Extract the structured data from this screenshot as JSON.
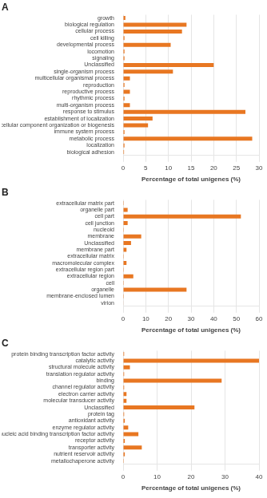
{
  "chart_data": [
    {
      "type": "bar",
      "orientation": "horizontal",
      "title": "A",
      "categories": [
        "growth",
        "biological regulation",
        "cellular process",
        "cell killing",
        "developmental process",
        "locomotion",
        "signaling",
        "Unclassified",
        "single-organism process",
        "multicellular organismal process",
        "reproduction",
        "reproductive process",
        "rhythmic process",
        "multi-organism process",
        "response to stimulus",
        "establishment of localization",
        "cellular component organization or biogenesis",
        "immune system process",
        "metabolic process",
        "localization",
        "biological adhesion"
      ],
      "values": [
        0.5,
        14.0,
        13.0,
        0.3,
        10.5,
        0.3,
        0.3,
        20.0,
        11.0,
        1.5,
        0.3,
        1.5,
        0.3,
        1.5,
        27.0,
        6.5,
        5.5,
        0.3,
        28.5,
        0.3,
        0.2
      ],
      "color": "#E87722",
      "xlabel": "Percentage of total unigenes (%)",
      "xlim": [
        0,
        30
      ],
      "xticks": [
        0,
        5,
        10,
        15,
        20,
        25,
        30
      ],
      "grid": true
    },
    {
      "type": "bar",
      "orientation": "horizontal",
      "title": "B",
      "categories": [
        "extracellular matrix part",
        "organelle part",
        "cell part",
        "cell junction",
        "nucleoid",
        "membrane",
        "Unclassified",
        "membrane part",
        "extracellular matrix",
        "macromolecular complex",
        "extracellular region part",
        "extracellular region",
        "cell",
        "organelle",
        "membrane-enclosed lumen",
        "virion"
      ],
      "values": [
        0.3,
        2.0,
        52.0,
        2.0,
        0.3,
        8.0,
        3.5,
        1.5,
        0.3,
        1.5,
        0.3,
        4.5,
        0.3,
        28.0,
        0.3,
        0.2
      ],
      "color": "#E87722",
      "xlabel": "Percentage of total unigenes (%)",
      "xlim": [
        0,
        60
      ],
      "xticks": [
        0,
        10,
        20,
        30,
        40,
        50,
        60
      ],
      "grid": true
    },
    {
      "type": "bar",
      "orientation": "horizontal",
      "title": "C",
      "categories": [
        "protein binding transcription factor activity",
        "catalytic activity",
        "structural molecule activity",
        "translation regulator activity",
        "binding",
        "channel regulator activity",
        "electron carrier activity",
        "molecular transducer activity",
        "Unclassified",
        "protein tag",
        "antioxidant activity",
        "enzyme regulator activity",
        "nucleic acid binding transcription factor activity",
        "receptor activity",
        "transporter activity",
        "nutrient reservoir activity",
        "metallochaperone activity"
      ],
      "values": [
        0.3,
        40.0,
        2.0,
        0.3,
        29.0,
        0.3,
        1.0,
        1.0,
        21.0,
        0.3,
        0.5,
        1.5,
        4.5,
        0.5,
        5.5,
        0.5,
        0.2
      ],
      "color": "#E87722",
      "xlabel": "Percentage of total unigenes (%)",
      "xlim": [
        0,
        40
      ],
      "xticks": [
        0,
        10,
        20,
        30,
        40
      ],
      "grid": true
    }
  ]
}
